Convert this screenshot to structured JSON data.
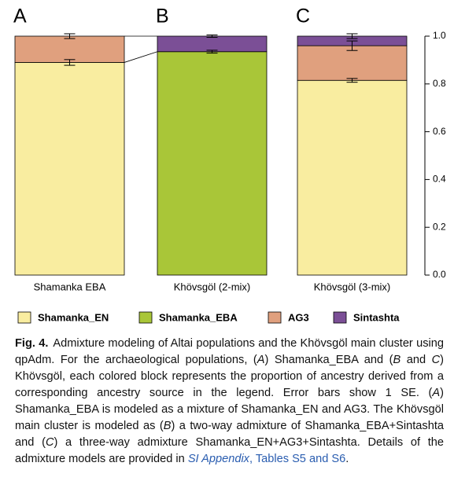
{
  "chart_data": {
    "type": "stacked-bar",
    "panel_labels": [
      "A",
      "B",
      "C"
    ],
    "categories": [
      "Shamanka EBA",
      "Khövsgöl (2-mix)",
      "Khövsgöl (3-mix)"
    ],
    "series": [
      {
        "name": "Shamanka_EN",
        "color": "#f9eda0",
        "values": [
          0.89,
          null,
          0.815
        ],
        "errors": [
          0.012,
          null,
          0.008
        ]
      },
      {
        "name": "Shamanka_EBA",
        "color": "#a9c638",
        "values": [
          null,
          0.935,
          null
        ],
        "errors": [
          null,
          0.006,
          null
        ]
      },
      {
        "name": "AG3",
        "color": "#e0a07e",
        "values": [
          0.11,
          null,
          0.145
        ],
        "errors": [
          0.01,
          null,
          0.02
        ]
      },
      {
        "name": "Sintashta",
        "color": "#7b4f96",
        "values": [
          null,
          0.065,
          0.04
        ],
        "errors": [
          null,
          0.005,
          0.01
        ]
      }
    ],
    "ylim": [
      0,
      1
    ],
    "yticks": [
      {
        "value": 0,
        "label": "0.0"
      },
      {
        "value": 0.2,
        "label": "0.2"
      },
      {
        "value": 0.4,
        "label": "0.4"
      },
      {
        "value": 0.6,
        "label": "0.6"
      },
      {
        "value": 0.8,
        "label": "0.8"
      },
      {
        "value": 1,
        "label": "1.0"
      }
    ]
  },
  "caption": {
    "label": "Fig. 4.",
    "parts": [
      "Admixture modeling of Altai populations and the Khövsgöl main cluster using qpAdm. For the archaeological populations, (",
      "A",
      ") Shamanka_EBA and (",
      "B",
      " and ",
      "C",
      ") Khövsgöl, each colored block represents the proportion of ancestry derived from a corresponding ancestry source in the legend. Error bars show 1 SE. (",
      "A",
      ") Shamanka_EBA is modeled as a mixture of Shamanka_EN and AG3. The Khövsgöl main cluster is modeled as (",
      "B",
      ") a two-way admixture of Shamanka_EBA+Sintashta and (",
      "C",
      ") a three-way admixture Shamanka_EN+AG3+Sintashta. Details of the admixture models are provided in ",
      "SI Appendix",
      ", Tables S5 and S6",
      "."
    ]
  }
}
